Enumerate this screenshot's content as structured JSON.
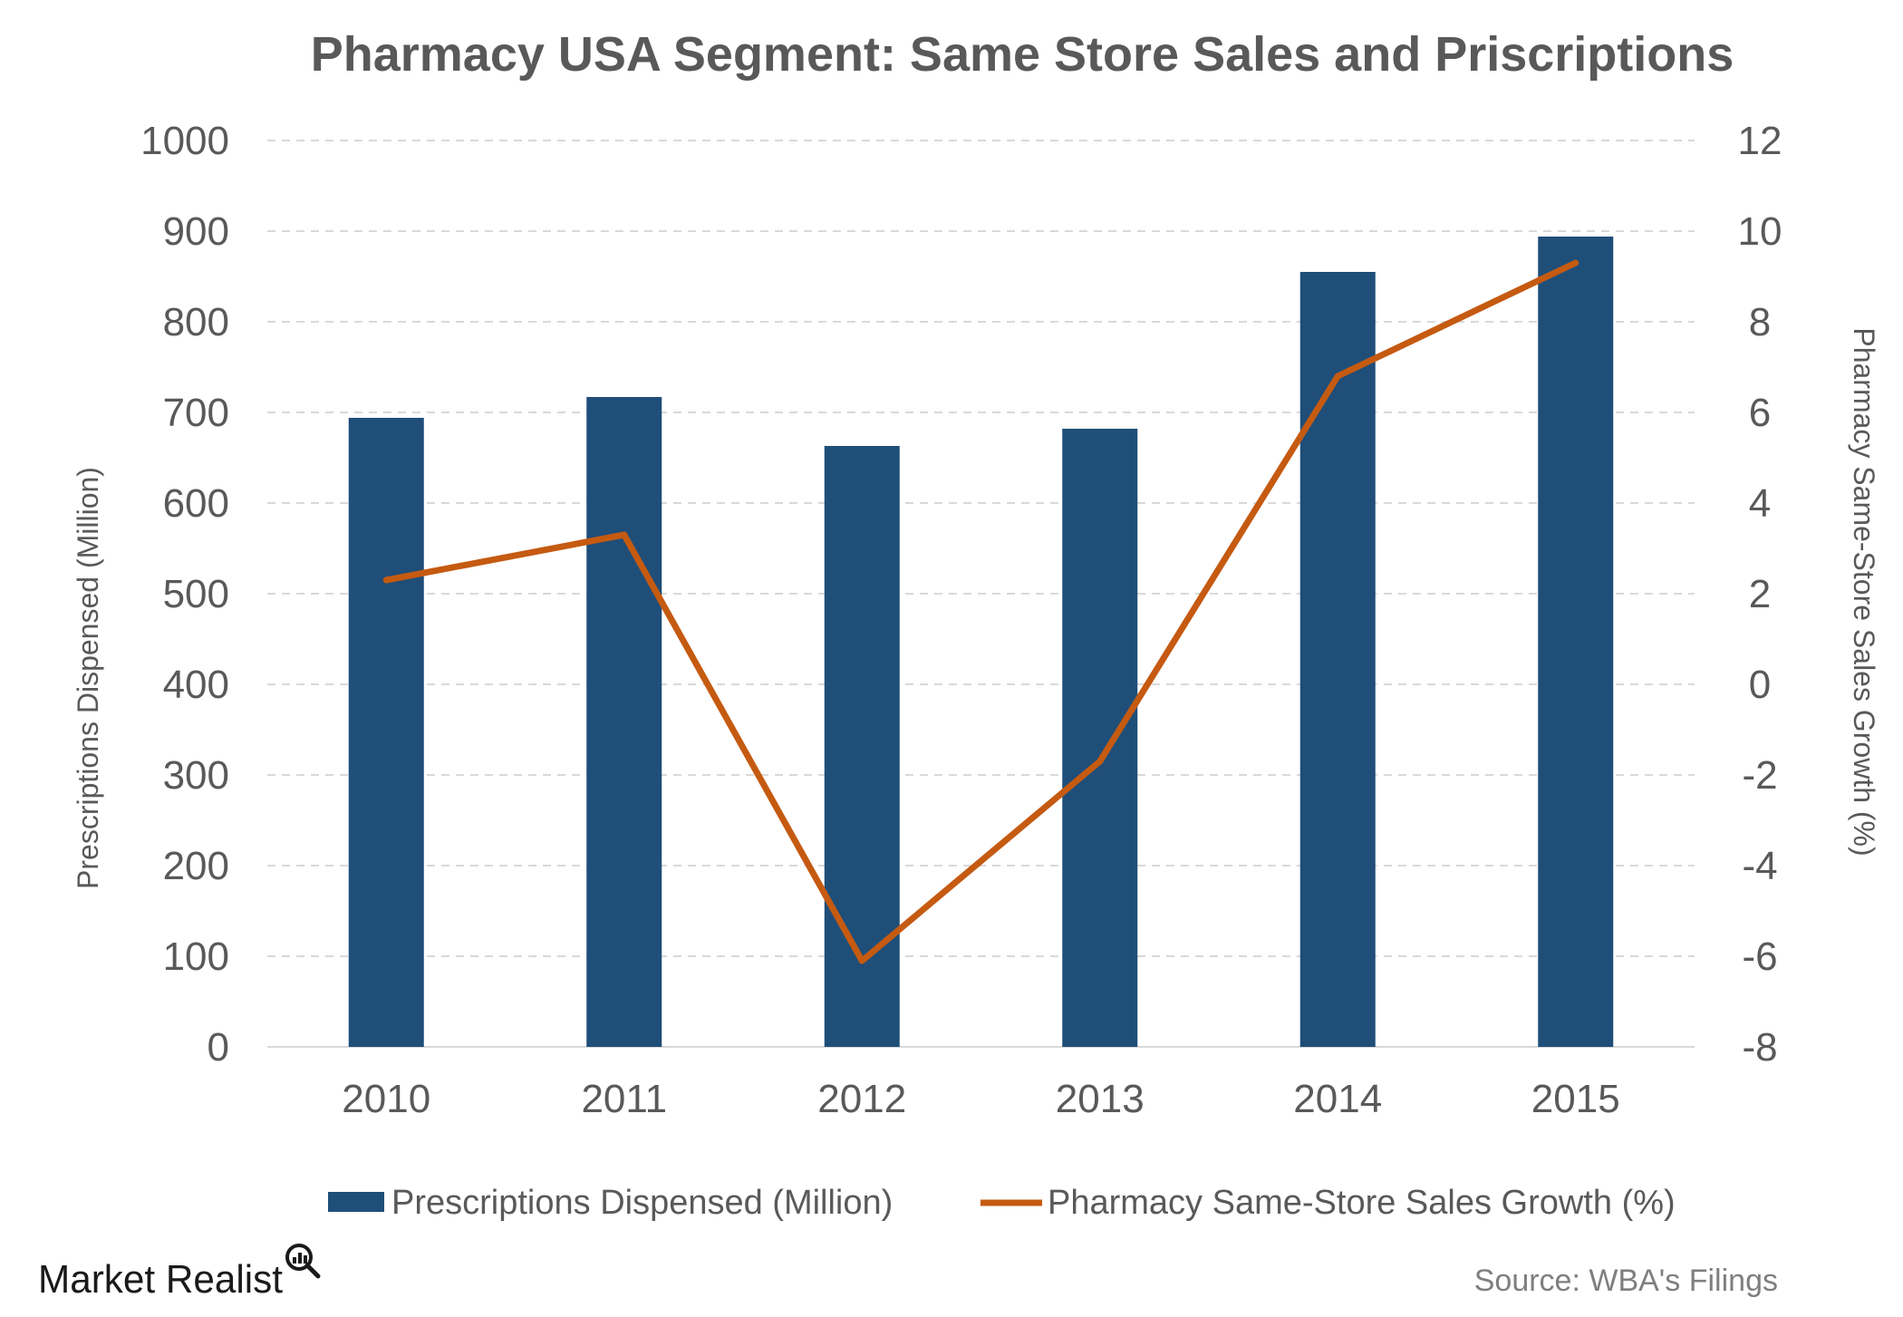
{
  "chart_data": {
    "type": "bar",
    "title": "Pharmacy USA  Segment: Same Store Sales and Priscriptions",
    "categories": [
      "2010",
      "2011",
      "2012",
      "2013",
      "2014",
      "2015"
    ],
    "series": [
      {
        "name": "Prescriptions Dispensed (Million)",
        "type": "bar",
        "axis": "left",
        "color": "#1f4e79",
        "values": [
          694,
          717,
          663,
          682,
          855,
          894
        ]
      },
      {
        "name": "Pharmacy Same-Store Sales Growth (%)",
        "type": "line",
        "axis": "right",
        "color": "#c55a11",
        "values": [
          2.3,
          3.3,
          -6.1,
          -1.7,
          6.8,
          9.3
        ]
      }
    ],
    "ylabel": "Prescriptions Dispensed (Million)",
    "y2label": "Pharmacy Same-Store Sales Growth (%)",
    "ylim": [
      0,
      1000
    ],
    "yticks": [
      "0",
      "100",
      "200",
      "300",
      "400",
      "500",
      "600",
      "700",
      "800",
      "900",
      "1000"
    ],
    "y2lim": [
      -8,
      12
    ],
    "y2ticks": [
      "-8",
      "-6",
      "-4",
      "-2",
      "0",
      "2",
      "4",
      "6",
      "8",
      "10",
      "12"
    ],
    "grid": true,
    "legend_position": "bottom"
  },
  "footer": {
    "brand": "Market Realist",
    "brand_icon": "magnifier-icon",
    "source": "Source: WBA's Filings"
  }
}
